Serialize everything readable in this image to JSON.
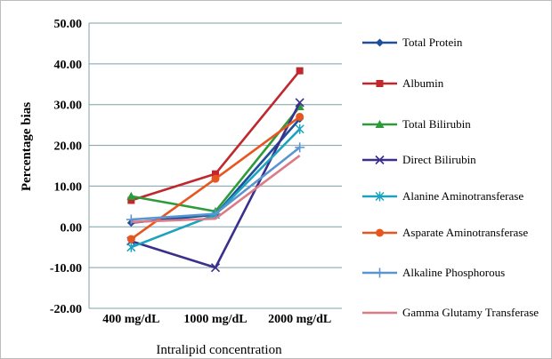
{
  "chart_data": {
    "type": "line",
    "title": "",
    "categories": [
      "400 mg/dL",
      "1000 mg/dL",
      "2000 mg/dL"
    ],
    "xlabel": "Intralipid concentration",
    "ylabel": "Percentage  bias",
    "ylim": [
      -20,
      50
    ],
    "yticks": [
      -20,
      -10,
      0,
      10,
      20,
      30,
      40,
      50
    ],
    "ytick_labels": [
      "-20.00",
      "-10.00",
      "0.00",
      "10.00",
      "20.00",
      "30.00",
      "40.00",
      "50.00"
    ],
    "grid": "horizontal",
    "legend_position": "right",
    "series": [
      {
        "name": "Total Protein",
        "values": [
          1.0,
          3.0,
          26.5
        ],
        "color": "#1f4e9a",
        "marker": "diamond"
      },
      {
        "name": "Albumin",
        "values": [
          6.5,
          13.0,
          38.3
        ],
        "color": "#c0282d",
        "marker": "square"
      },
      {
        "name": "Total Bilirubin",
        "values": [
          7.5,
          3.8,
          29.5
        ],
        "color": "#2e9b3a",
        "marker": "triangle"
      },
      {
        "name": "Direct Bilirubin",
        "values": [
          -3.5,
          -10.0,
          30.5
        ],
        "color": "#3a2f8c",
        "marker": "x"
      },
      {
        "name": "Alanine Aminotransferase",
        "values": [
          -5.0,
          3.0,
          24.0
        ],
        "color": "#1ba3bd",
        "marker": "asterisk"
      },
      {
        "name": "Asparate Aminotransferase",
        "values": [
          -3.0,
          11.8,
          27.0
        ],
        "color": "#e8561f",
        "marker": "circle"
      },
      {
        "name": "Alkaline Phosphorous",
        "values": [
          1.8,
          3.2,
          19.5
        ],
        "color": "#5b95d1",
        "marker": "plus"
      },
      {
        "name": "Gamma Glutamy Transferase",
        "values": [
          1.2,
          2.0,
          17.5
        ],
        "color": "#dc7b86",
        "marker": "none"
      }
    ]
  }
}
